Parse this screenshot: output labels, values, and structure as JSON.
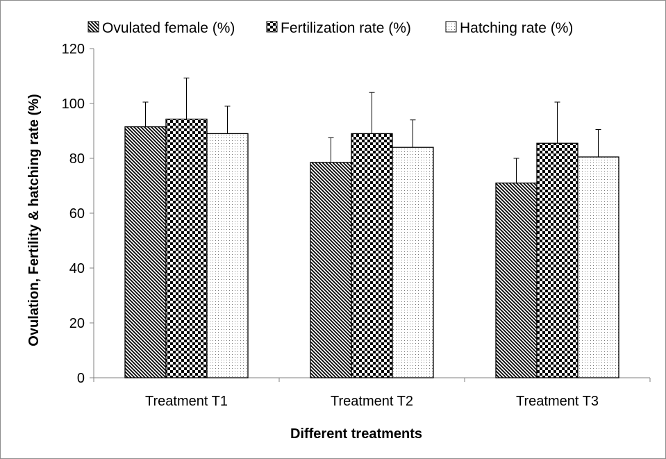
{
  "chart_data": {
    "type": "bar",
    "xlabel": "Different treatments",
    "ylabel": "Ovulation, Fertility & hatching rate (%)",
    "ylim": [
      0,
      120
    ],
    "yticks": [
      "0",
      "20",
      "40",
      "60",
      "80",
      "100",
      "120"
    ],
    "categories": [
      "Treatment T1",
      "Treatment T2",
      "Treatment T3"
    ],
    "series": [
      {
        "name": "Ovulated female (%)",
        "pattern": "diagonal-stripes",
        "values": [
          91.5,
          78.5,
          71
        ],
        "errors": [
          9,
          9,
          9
        ]
      },
      {
        "name": "Fertilization rate (%)",
        "pattern": "checkerboard",
        "values": [
          94.3,
          89,
          85.5
        ],
        "errors": [
          15,
          15,
          15
        ]
      },
      {
        "name": "Hatching rate (%)",
        "pattern": "dotted",
        "values": [
          89,
          84,
          80.5
        ],
        "errors": [
          10,
          10,
          10
        ]
      }
    ],
    "legend_position": "top",
    "grid": false,
    "colors": {
      "pattern_ink": "#000000",
      "background": "#ffffff",
      "axis": "#808080",
      "frame": "#8c8c8c"
    }
  }
}
